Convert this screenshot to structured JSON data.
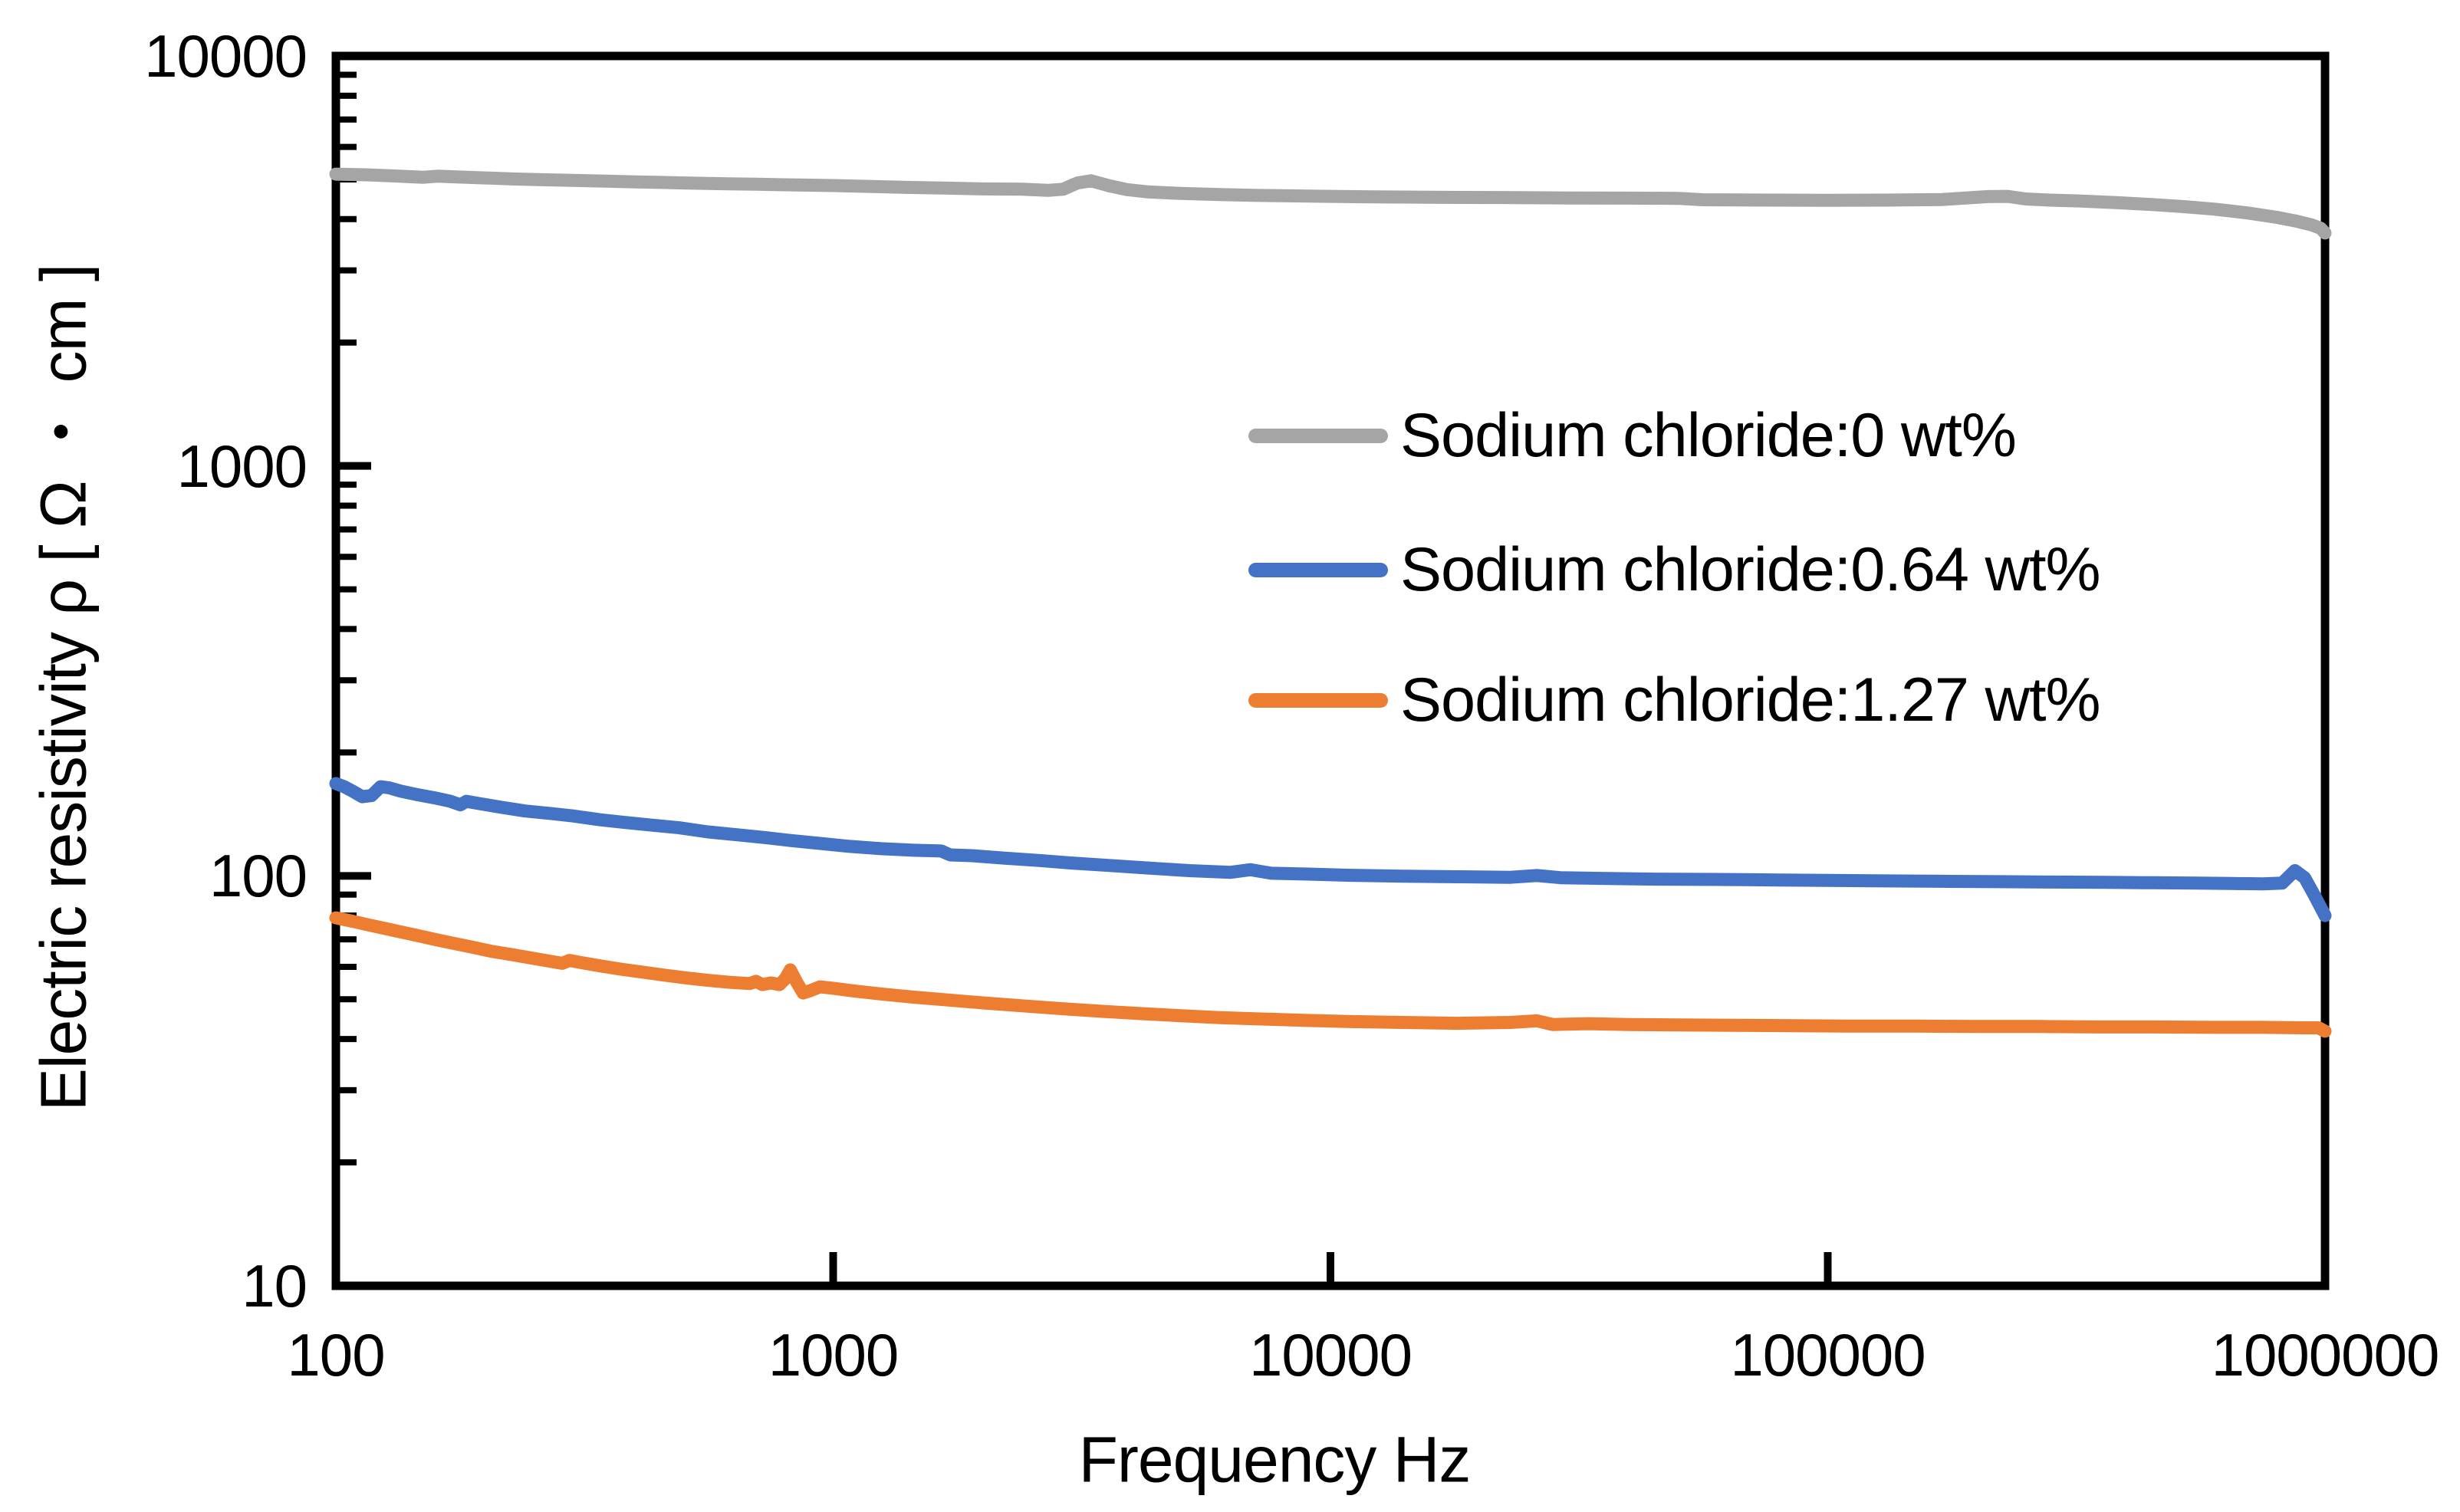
{
  "chart_data": {
    "type": "line",
    "title": "",
    "xlabel": "Frequency Hz",
    "ylabel": "Electric resistivity ρ [ Ω ・ cm ]",
    "x_scale": "log",
    "y_scale": "log",
    "xlim": [
      100,
      1000000
    ],
    "ylim": [
      10,
      10000
    ],
    "x_ticks": [
      100,
      1000,
      10000,
      100000,
      1000000
    ],
    "x_tick_labels": [
      "100",
      "1000",
      "10000",
      "100000",
      "1000000"
    ],
    "y_ticks": [
      10,
      100,
      1000,
      10000
    ],
    "y_tick_labels": [
      "10",
      "100",
      "1000",
      "10000"
    ],
    "y_minor_tick_decades": [
      10,
      100,
      1000
    ],
    "grid": false,
    "frame": true,
    "legend_position": "inside-upper-right",
    "series": [
      {
        "name": "Sodium chloride:0 wt%",
        "color": "#a5a5a5",
        "points": [
          [
            100,
            5150
          ],
          [
            115,
            5130
          ],
          [
            130,
            5100
          ],
          [
            150,
            5060
          ],
          [
            160,
            5090
          ],
          [
            175,
            5070
          ],
          [
            200,
            5040
          ],
          [
            230,
            5010
          ],
          [
            260,
            4990
          ],
          [
            300,
            4970
          ],
          [
            350,
            4950
          ],
          [
            400,
            4930
          ],
          [
            450,
            4915
          ],
          [
            500,
            4900
          ],
          [
            600,
            4880
          ],
          [
            700,
            4865
          ],
          [
            800,
            4850
          ],
          [
            900,
            4840
          ],
          [
            1000,
            4830
          ],
          [
            1200,
            4805
          ],
          [
            1400,
            4780
          ],
          [
            1700,
            4760
          ],
          [
            2000,
            4740
          ],
          [
            2400,
            4730
          ],
          [
            2700,
            4700
          ],
          [
            2900,
            4730
          ],
          [
            3100,
            4900
          ],
          [
            3300,
            4960
          ],
          [
            3600,
            4820
          ],
          [
            3900,
            4720
          ],
          [
            4300,
            4660
          ],
          [
            5000,
            4620
          ],
          [
            6000,
            4590
          ],
          [
            7000,
            4570
          ],
          [
            8000,
            4560
          ],
          [
            10000,
            4545
          ],
          [
            13000,
            4530
          ],
          [
            17000,
            4520
          ],
          [
            22000,
            4515
          ],
          [
            30000,
            4505
          ],
          [
            40000,
            4500
          ],
          [
            50000,
            4495
          ],
          [
            56000,
            4460
          ],
          [
            65000,
            4455
          ],
          [
            80000,
            4450
          ],
          [
            100000,
            4445
          ],
          [
            130000,
            4450
          ],
          [
            170000,
            4465
          ],
          [
            210000,
            4540
          ],
          [
            230000,
            4545
          ],
          [
            250000,
            4480
          ],
          [
            280000,
            4450
          ],
          [
            320000,
            4430
          ],
          [
            380000,
            4390
          ],
          [
            450000,
            4340
          ],
          [
            520000,
            4290
          ],
          [
            600000,
            4230
          ],
          [
            700000,
            4140
          ],
          [
            800000,
            4040
          ],
          [
            880000,
            3950
          ],
          [
            940000,
            3870
          ],
          [
            980000,
            3800
          ],
          [
            1000000,
            3700
          ]
        ]
      },
      {
        "name": "Sodium chloride:0.64 wt%",
        "color": "#4472c4",
        "points": [
          [
            100,
            168
          ],
          [
            104,
            165
          ],
          [
            108,
            161
          ],
          [
            113,
            156
          ],
          [
            118,
            157
          ],
          [
            123,
            165
          ],
          [
            128,
            164
          ],
          [
            135,
            161
          ],
          [
            145,
            158
          ],
          [
            158,
            155
          ],
          [
            170,
            152
          ],
          [
            178,
            149
          ],
          [
            183,
            152
          ],
          [
            195,
            150
          ],
          [
            215,
            147
          ],
          [
            240,
            144
          ],
          [
            270,
            142
          ],
          [
            300,
            140
          ],
          [
            340,
            137
          ],
          [
            380,
            135
          ],
          [
            430,
            133
          ],
          [
            490,
            131
          ],
          [
            560,
            128
          ],
          [
            640,
            126
          ],
          [
            730,
            124
          ],
          [
            820,
            122
          ],
          [
            940,
            120
          ],
          [
            1080,
            118
          ],
          [
            1250,
            116.5
          ],
          [
            1450,
            115.5
          ],
          [
            1650,
            115
          ],
          [
            1720,
            112.5
          ],
          [
            1900,
            112
          ],
          [
            2200,
            110.5
          ],
          [
            2600,
            109
          ],
          [
            3000,
            107.5
          ],
          [
            3600,
            106
          ],
          [
            4300,
            104.5
          ],
          [
            5200,
            103
          ],
          [
            6300,
            102
          ],
          [
            6900,
            103.5
          ],
          [
            7600,
            101.5
          ],
          [
            9000,
            101
          ],
          [
            11000,
            100.3
          ],
          [
            14000,
            99.8
          ],
          [
            18000,
            99.5
          ],
          [
            23000,
            99.2
          ],
          [
            26000,
            100.2
          ],
          [
            29000,
            99
          ],
          [
            35000,
            98.6
          ],
          [
            45000,
            98.2
          ],
          [
            60000,
            98
          ],
          [
            80000,
            97.7
          ],
          [
            100000,
            97.5
          ],
          [
            130000,
            97.2
          ],
          [
            170000,
            97
          ],
          [
            220000,
            96.8
          ],
          [
            280000,
            96.6
          ],
          [
            360000,
            96.4
          ],
          [
            450000,
            96.2
          ],
          [
            550000,
            96
          ],
          [
            650000,
            95.8
          ],
          [
            750000,
            95.6
          ],
          [
            820000,
            96
          ],
          [
            870000,
            103
          ],
          [
            910000,
            99
          ],
          [
            950000,
            90
          ],
          [
            1000000,
            80
          ]
        ]
      },
      {
        "name": "Sodium chloride:1.27 wt%",
        "color": "#ed7d31",
        "points": [
          [
            100,
            79
          ],
          [
            108,
            77.5
          ],
          [
            116,
            76
          ],
          [
            125,
            74.5
          ],
          [
            135,
            73
          ],
          [
            146,
            71.5
          ],
          [
            158,
            70
          ],
          [
            172,
            68.5
          ],
          [
            188,
            67
          ],
          [
            205,
            65.5
          ],
          [
            225,
            64.3
          ],
          [
            248,
            63
          ],
          [
            272,
            61.8
          ],
          [
            285,
            61.2
          ],
          [
            295,
            62.2
          ],
          [
            310,
            61.5
          ],
          [
            340,
            60.3
          ],
          [
            375,
            59.2
          ],
          [
            415,
            58.2
          ],
          [
            460,
            57.2
          ],
          [
            510,
            56.3
          ],
          [
            560,
            55.6
          ],
          [
            620,
            55
          ],
          [
            680,
            54.6
          ],
          [
            700,
            55.3
          ],
          [
            720,
            54.3
          ],
          [
            750,
            54.8
          ],
          [
            780,
            54.3
          ],
          [
            800,
            56
          ],
          [
            820,
            59
          ],
          [
            845,
            55
          ],
          [
            870,
            51.8
          ],
          [
            900,
            52.5
          ],
          [
            940,
            53.6
          ],
          [
            1000,
            53.2
          ],
          [
            1100,
            52.4
          ],
          [
            1250,
            51.5
          ],
          [
            1450,
            50.6
          ],
          [
            1700,
            49.8
          ],
          [
            2000,
            49
          ],
          [
            2400,
            48.2
          ],
          [
            2900,
            47.4
          ],
          [
            3500,
            46.7
          ],
          [
            4200,
            46.1
          ],
          [
            5000,
            45.6
          ],
          [
            6000,
            45.1
          ],
          [
            7500,
            44.7
          ],
          [
            9000,
            44.4
          ],
          [
            11000,
            44.1
          ],
          [
            14000,
            43.9
          ],
          [
            18000,
            43.7
          ],
          [
            23000,
            43.9
          ],
          [
            26000,
            44.3
          ],
          [
            28000,
            43.4
          ],
          [
            33000,
            43.6
          ],
          [
            40000,
            43.4
          ],
          [
            50000,
            43.3
          ],
          [
            65000,
            43.2
          ],
          [
            85000,
            43.1
          ],
          [
            110000,
            43
          ],
          [
            150000,
            43
          ],
          [
            200000,
            42.9
          ],
          [
            270000,
            42.9
          ],
          [
            350000,
            42.8
          ],
          [
            450000,
            42.8
          ],
          [
            600000,
            42.7
          ],
          [
            750000,
            42.7
          ],
          [
            900000,
            42.6
          ],
          [
            970000,
            42.6
          ],
          [
            1000000,
            41.8
          ]
        ]
      }
    ],
    "legend_entries": [
      "Sodium chloride:0 wt%",
      "Sodium chloride:0.64 wt%",
      "Sodium chloride:1.27 wt%"
    ]
  }
}
